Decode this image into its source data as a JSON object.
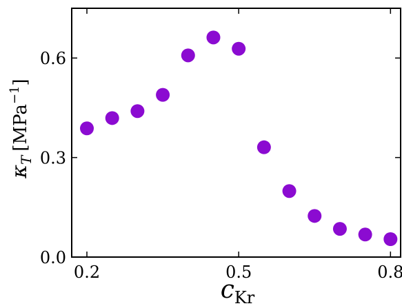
{
  "chart_data": {
    "type": "scatter",
    "title": "",
    "xlabel": {
      "main": "c",
      "sub": "Kr"
    },
    "ylabel": {
      "main": "κ",
      "sub": "T",
      "unit_open": "[MPa",
      "exp": "−1",
      "unit_close": "]"
    },
    "xlim": [
      0.17,
      0.82
    ],
    "ylim": [
      0.0,
      0.75
    ],
    "xticks": [
      0.2,
      0.5,
      0.8
    ],
    "xtick_labels": [
      "0.2",
      "0.5",
      "0.8"
    ],
    "yticks": [
      0.0,
      0.3,
      0.6
    ],
    "ytick_labels": [
      "0.0",
      "0.3",
      "0.6"
    ],
    "grid": false,
    "marker_color": "#8B0BD1",
    "x": [
      0.2,
      0.25,
      0.3,
      0.35,
      0.4,
      0.45,
      0.5,
      0.55,
      0.6,
      0.65,
      0.7,
      0.75,
      0.8
    ],
    "y": [
      0.388,
      0.419,
      0.44,
      0.489,
      0.608,
      0.662,
      0.628,
      0.331,
      0.199,
      0.124,
      0.085,
      0.068,
      0.054
    ]
  }
}
